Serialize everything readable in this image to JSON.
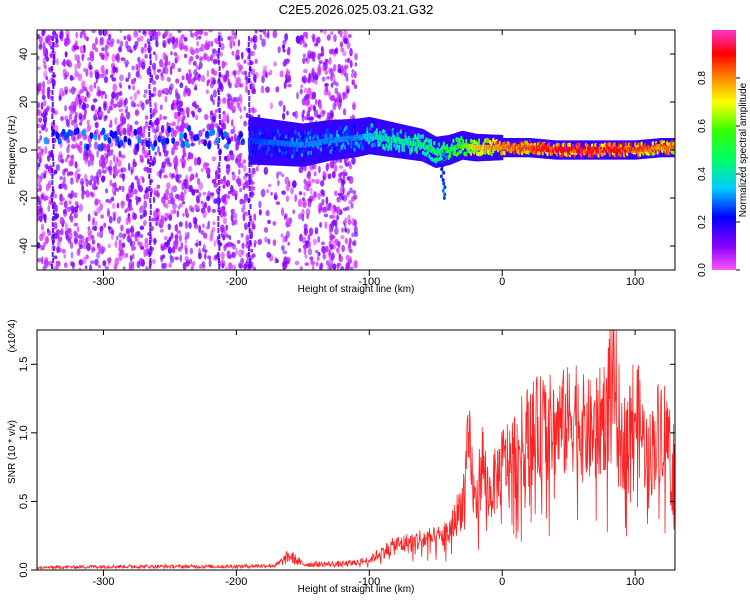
{
  "title": "C2E5.2026.025.03.21.G32",
  "chart_data": [
    {
      "type": "heatmap",
      "xlabel": "Height of straight line (km)",
      "ylabel": "Frequency (Hz)",
      "xlim": [
        -350,
        130
      ],
      "ylim": [
        -50,
        50
      ],
      "xticks": [
        -300,
        -200,
        -100,
        0,
        100
      ],
      "yticks": [
        -40,
        -20,
        0,
        20,
        40
      ],
      "colorbar": {
        "label": "Normalized spectral amplitude",
        "range": [
          0,
          1
        ],
        "ticks": [
          0.0,
          0.2,
          0.4,
          0.6,
          0.8
        ],
        "colors": [
          "#ff55ff",
          "#8800ff",
          "#0000ff",
          "#00ccff",
          "#00ff66",
          "#33ff00",
          "#ffff00",
          "#ff8800",
          "#ff0000",
          "#ff33cc"
        ]
      },
      "ridge": {
        "x": [
          -190,
          -170,
          -150,
          -130,
          -110,
          -100,
          -90,
          -80,
          -70,
          -60,
          -50,
          -40,
          -30,
          -20,
          -10,
          0,
          20,
          40,
          60,
          80,
          100,
          120,
          130
        ],
        "freq": [
          4,
          3,
          2,
          4,
          5,
          6,
          5,
          4,
          3,
          2,
          -1,
          0,
          2,
          1,
          1,
          1,
          1,
          0,
          0,
          0,
          0,
          1,
          1
        ],
        "amplitude": [
          0.25,
          0.28,
          0.3,
          0.3,
          0.3,
          0.35,
          0.4,
          0.4,
          0.42,
          0.45,
          0.45,
          0.5,
          0.55,
          0.7,
          0.75,
          0.8,
          0.85,
          0.9,
          0.9,
          0.9,
          0.85,
          0.8,
          0.8
        ]
      }
    },
    {
      "type": "line",
      "xlabel": "Height of straight line (km)",
      "ylabel": "SNR (10 * v/v)",
      "y_multiplier": "(x10^4)",
      "xlim": [
        -350,
        130
      ],
      "ylim": [
        0,
        1.75
      ],
      "xticks": [
        -300,
        -200,
        -100,
        0,
        100
      ],
      "yticks": [
        0.0,
        0.5,
        1.0,
        1.5
      ],
      "ytick_labels": [
        "0.0",
        "0.5",
        "1.0",
        "1.5"
      ],
      "series_color": "#ff2222",
      "x": [
        -350,
        -300,
        -250,
        -200,
        -170,
        -160,
        -150,
        -120,
        -110,
        -100,
        -90,
        -80,
        -70,
        -60,
        -50,
        -40,
        -30,
        -25,
        -20,
        -15,
        -10,
        0,
        10,
        20,
        30,
        40,
        50,
        55,
        60,
        70,
        80,
        82,
        90,
        100,
        110,
        120,
        130
      ],
      "y": [
        0.02,
        0.03,
        0.03,
        0.03,
        0.04,
        0.12,
        0.05,
        0.05,
        0.06,
        0.08,
        0.15,
        0.2,
        0.22,
        0.25,
        0.25,
        0.3,
        0.55,
        1.0,
        0.5,
        0.9,
        0.6,
        0.85,
        0.95,
        1.1,
        1.15,
        1.15,
        1.2,
        1.3,
        1.15,
        1.1,
        1.35,
        1.75,
        1.0,
        1.3,
        0.9,
        1.2,
        0.9
      ]
    }
  ]
}
